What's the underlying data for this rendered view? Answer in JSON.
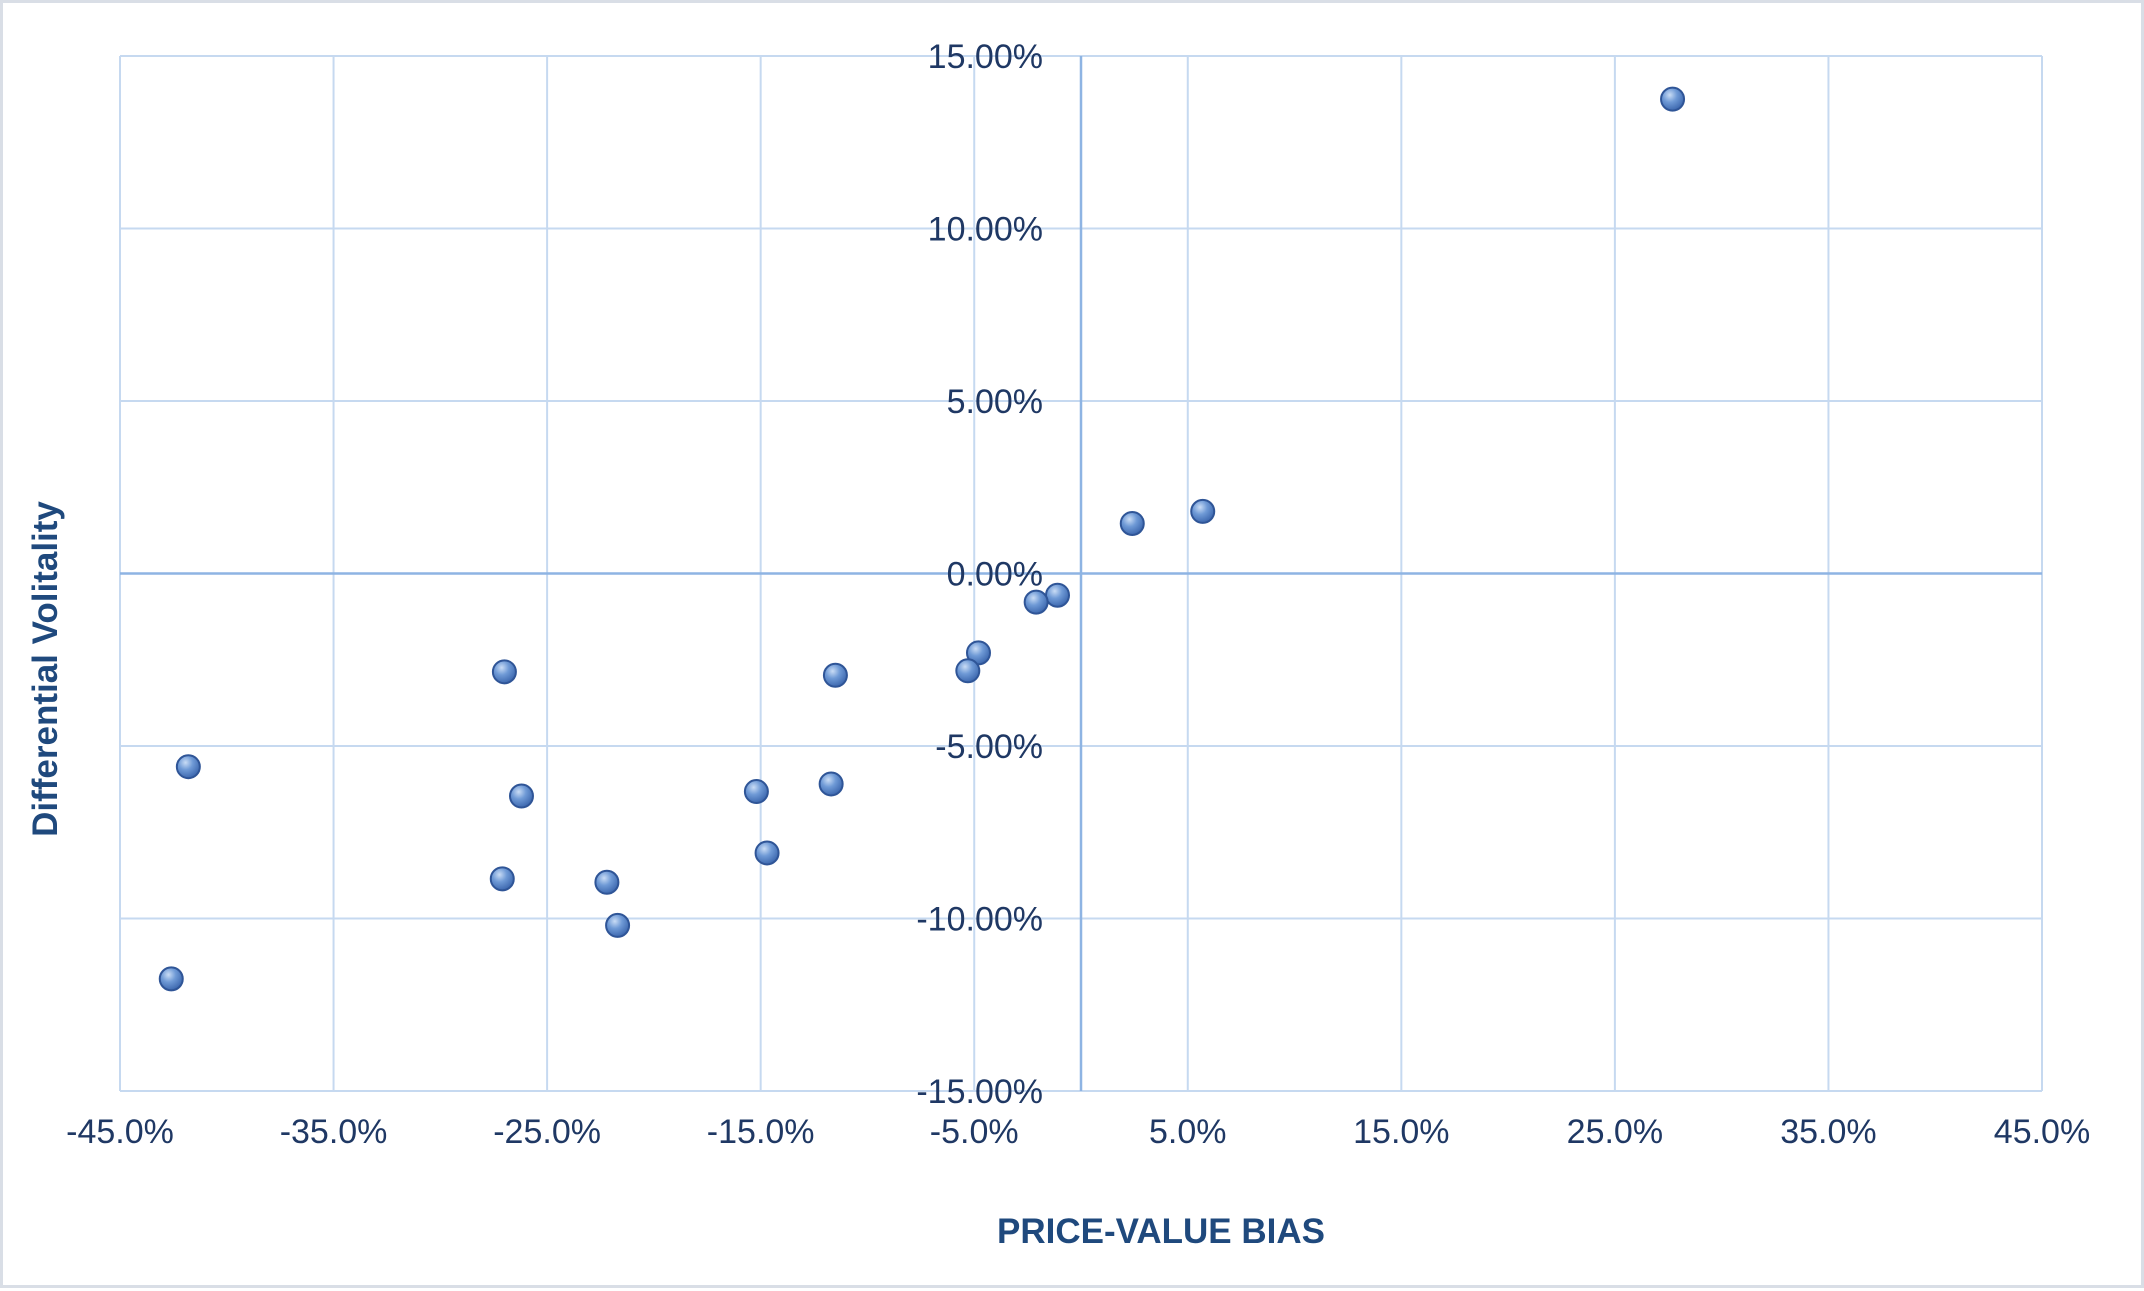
{
  "chart_data": {
    "type": "scatter",
    "title": "",
    "xlabel": "PRICE-VALUE BIAS",
    "ylabel": "Differential Volitality",
    "xlim": [
      -0.45,
      0.45
    ],
    "ylim": [
      -0.15,
      0.15
    ],
    "x_ticks": [
      -0.45,
      -0.35,
      -0.25,
      -0.15,
      -0.05,
      0.05,
      0.15,
      0.25,
      0.35,
      0.45
    ],
    "y_ticks": [
      0.15,
      0.1,
      0.05,
      0.0,
      -0.05,
      -0.1,
      -0.15
    ],
    "x_tick_labels": [
      "-45.0%",
      "-35.0%",
      "-25.0%",
      "-15.0%",
      "-5.0%",
      "5.0%",
      "15.0%",
      "25.0%",
      "35.0%",
      "45.0%"
    ],
    "y_tick_labels": [
      "15.00%",
      "10.00%",
      "5.00%",
      "0.00%",
      "-5.00%",
      "-10.00%",
      "-15.00%"
    ],
    "grid": true,
    "legend": "none",
    "marker_color": "#4f81bd",
    "points": [
      {
        "x": 0.277,
        "y": 0.1375
      },
      {
        "x": 0.057,
        "y": 0.018
      },
      {
        "x": 0.024,
        "y": 0.0145
      },
      {
        "x": -0.011,
        "y": -0.0063
      },
      {
        "x": -0.021,
        "y": -0.0083
      },
      {
        "x": -0.048,
        "y": -0.023
      },
      {
        "x": -0.053,
        "y": -0.0282
      },
      {
        "x": -0.115,
        "y": -0.0295
      },
      {
        "x": -0.27,
        "y": -0.0285
      },
      {
        "x": -0.418,
        "y": -0.056
      },
      {
        "x": -0.262,
        "y": -0.0645
      },
      {
        "x": -0.152,
        "y": -0.0632
      },
      {
        "x": -0.117,
        "y": -0.061
      },
      {
        "x": -0.147,
        "y": -0.081
      },
      {
        "x": -0.271,
        "y": -0.0885
      },
      {
        "x": -0.222,
        "y": -0.0895
      },
      {
        "x": -0.217,
        "y": -0.102
      },
      {
        "x": -0.426,
        "y": -0.1175
      }
    ]
  }
}
